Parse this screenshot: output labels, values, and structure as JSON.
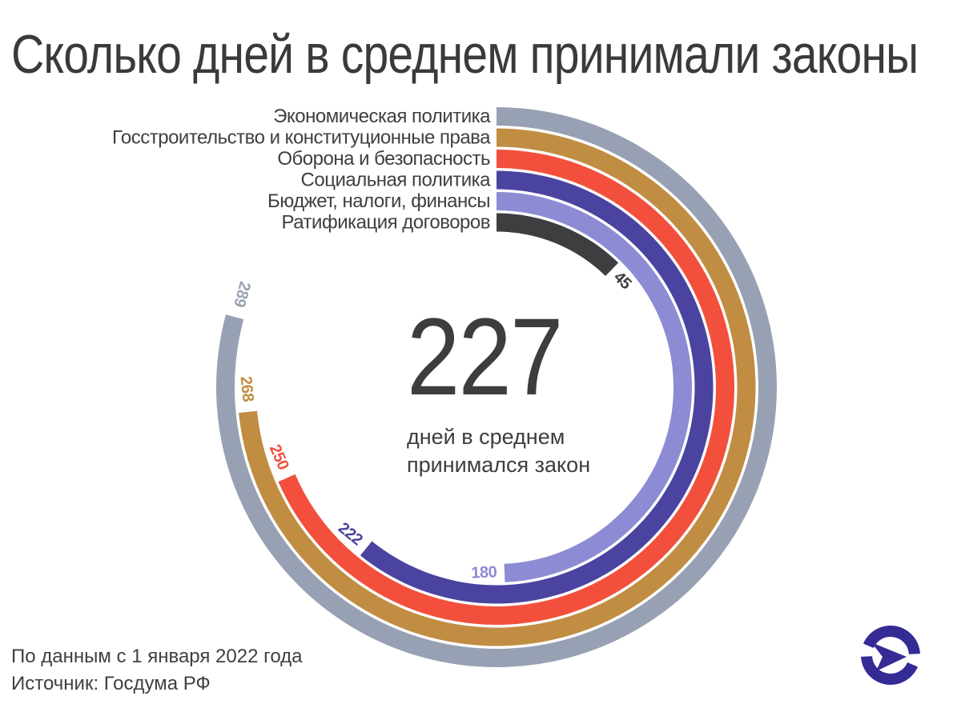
{
  "title": "Сколько дней в среднем принимали законы",
  "chart_data": {
    "type": "radial-bar",
    "title": "Сколько дней в среднем принимали законы",
    "unit": "дней",
    "scale_max": 365,
    "start_angle": "top",
    "direction": "clockwise",
    "grid": false,
    "legend_position": "labels-at-bar-start",
    "categories": [
      "Экономическая политика",
      "Госстроительство и конституционные права",
      "Оборона и безопасность",
      "Социальная политика",
      "Бюджет, налоги, финансы",
      "Ратификация договоров"
    ],
    "values": [
      289,
      268,
      250,
      222,
      180,
      45
    ],
    "colors": [
      "#98A1B3",
      "#C08D42",
      "#F2503C",
      "#4A43A0",
      "#8C8BD4",
      "#3E3D3F"
    ],
    "center": {
      "value": "227",
      "caption": [
        "дней в среднем",
        "принимался закон"
      ]
    }
  },
  "footer": {
    "line1": "По данным с 1 января 2022 года",
    "line2": "Источник: Госдума РФ"
  },
  "logo": {
    "name": "publisher-logo",
    "color": "#342B94"
  }
}
